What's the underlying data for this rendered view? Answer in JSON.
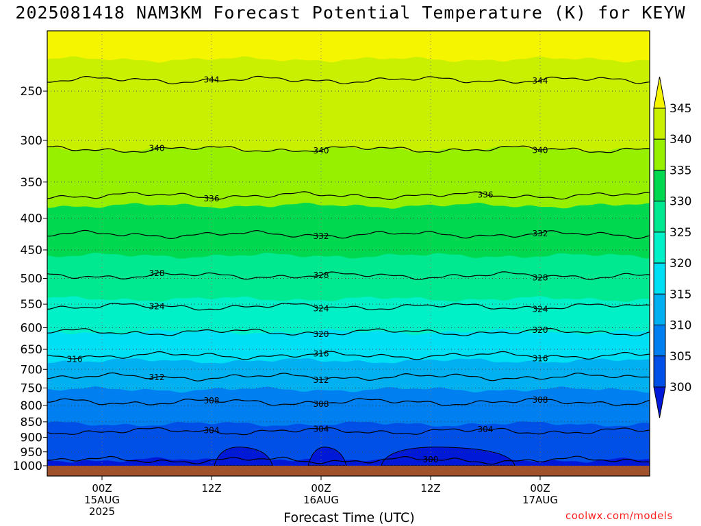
{
  "title": "2025081418 NAM3KM Forecast Potential Temperature (K) for KEYW",
  "credit": "coolwx.com/models",
  "chart_data": {
    "type": "contour",
    "title": "2025081418 NAM3KM Forecast Potential Temperature (K) for KEYW",
    "xlabel": "Forecast Time (UTC)",
    "ylabel": "",
    "y_axis": {
      "unit": "hPa",
      "scale": "log",
      "range": [
        1000,
        200
      ],
      "ticks": [
        250,
        300,
        350,
        400,
        450,
        500,
        550,
        600,
        650,
        700,
        750,
        800,
        850,
        900,
        950,
        1000
      ]
    },
    "x_axis": {
      "range": [
        "2025-08-14 18Z",
        "2025-08-17 12Z"
      ],
      "ticks": [
        {
          "time": "2025-08-15 00Z",
          "lines": [
            "00Z",
            "15AUG",
            "2025"
          ]
        },
        {
          "time": "2025-08-15 12Z",
          "lines": [
            "12Z"
          ]
        },
        {
          "time": "2025-08-16 00Z",
          "lines": [
            "00Z",
            "16AUG"
          ]
        },
        {
          "time": "2025-08-16 12Z",
          "lines": [
            "12Z"
          ]
        },
        {
          "time": "2025-08-17 00Z",
          "lines": [
            "00Z",
            "17AUG"
          ]
        }
      ]
    },
    "colorbar": {
      "labels": [
        345,
        340,
        335,
        330,
        325,
        320,
        315,
        310,
        305,
        300
      ],
      "bands": [
        {
          "min": 345,
          "color": "#f5f500"
        },
        {
          "min": 340,
          "max": 345,
          "color": "#c8f000"
        },
        {
          "min": 335,
          "max": 340,
          "color": "#96f000"
        },
        {
          "min": 330,
          "max": 335,
          "color": "#00d850"
        },
        {
          "min": 325,
          "max": 330,
          "color": "#00e890"
        },
        {
          "min": 320,
          "max": 325,
          "color": "#00f0c8"
        },
        {
          "min": 315,
          "max": 320,
          "color": "#00e0f5"
        },
        {
          "min": 310,
          "max": 315,
          "color": "#00b0f0"
        },
        {
          "min": 305,
          "max": 310,
          "color": "#0080f0"
        },
        {
          "min": 300,
          "max": 305,
          "color": "#0050e8"
        },
        {
          "max": 300,
          "color": "#0018d8"
        }
      ]
    },
    "contours": [
      {
        "value": 344,
        "p": 240,
        "labels": [
          "15AUG 12Z",
          "17AUG 00Z"
        ]
      },
      {
        "value": 340,
        "p": 310,
        "labels": [
          "15AUG 06Z",
          "16AUG 00Z",
          "17AUG 00Z"
        ]
      },
      {
        "value": 336,
        "p": 368,
        "labels": [
          "15AUG 12Z",
          "16AUG 18Z"
        ]
      },
      {
        "value": 332,
        "p": 425,
        "labels": [
          "16AUG 00Z",
          "17AUG 00Z"
        ]
      },
      {
        "value": 328,
        "p": 495,
        "labels": [
          "15AUG 06Z",
          "16AUG 00Z",
          "17AUG 00Z"
        ]
      },
      {
        "value": 324,
        "p": 555,
        "labels": [
          "15AUG 06Z",
          "16AUG 00Z",
          "17AUG 00Z"
        ]
      },
      {
        "value": 320,
        "p": 610,
        "labels": [
          "16AUG 00Z",
          "17AUG 00Z"
        ]
      },
      {
        "value": 316,
        "p": 665,
        "labels": [
          "14AUG 21Z",
          "16AUG 00Z",
          "17AUG 00Z"
        ]
      },
      {
        "value": 312,
        "p": 720,
        "labels": [
          "15AUG 06Z",
          "16AUG 00Z"
        ]
      },
      {
        "value": 308,
        "p": 790,
        "labels": [
          "15AUG 12Z",
          "16AUG 00Z",
          "17AUG 00Z"
        ]
      },
      {
        "value": 304,
        "p": 880,
        "labels": [
          "15AUG 12Z",
          "16AUG 00Z",
          "16AUG 18Z"
        ]
      },
      {
        "value": 300,
        "p": 980,
        "labels": [
          "16AUG 12Z"
        ]
      }
    ]
  }
}
